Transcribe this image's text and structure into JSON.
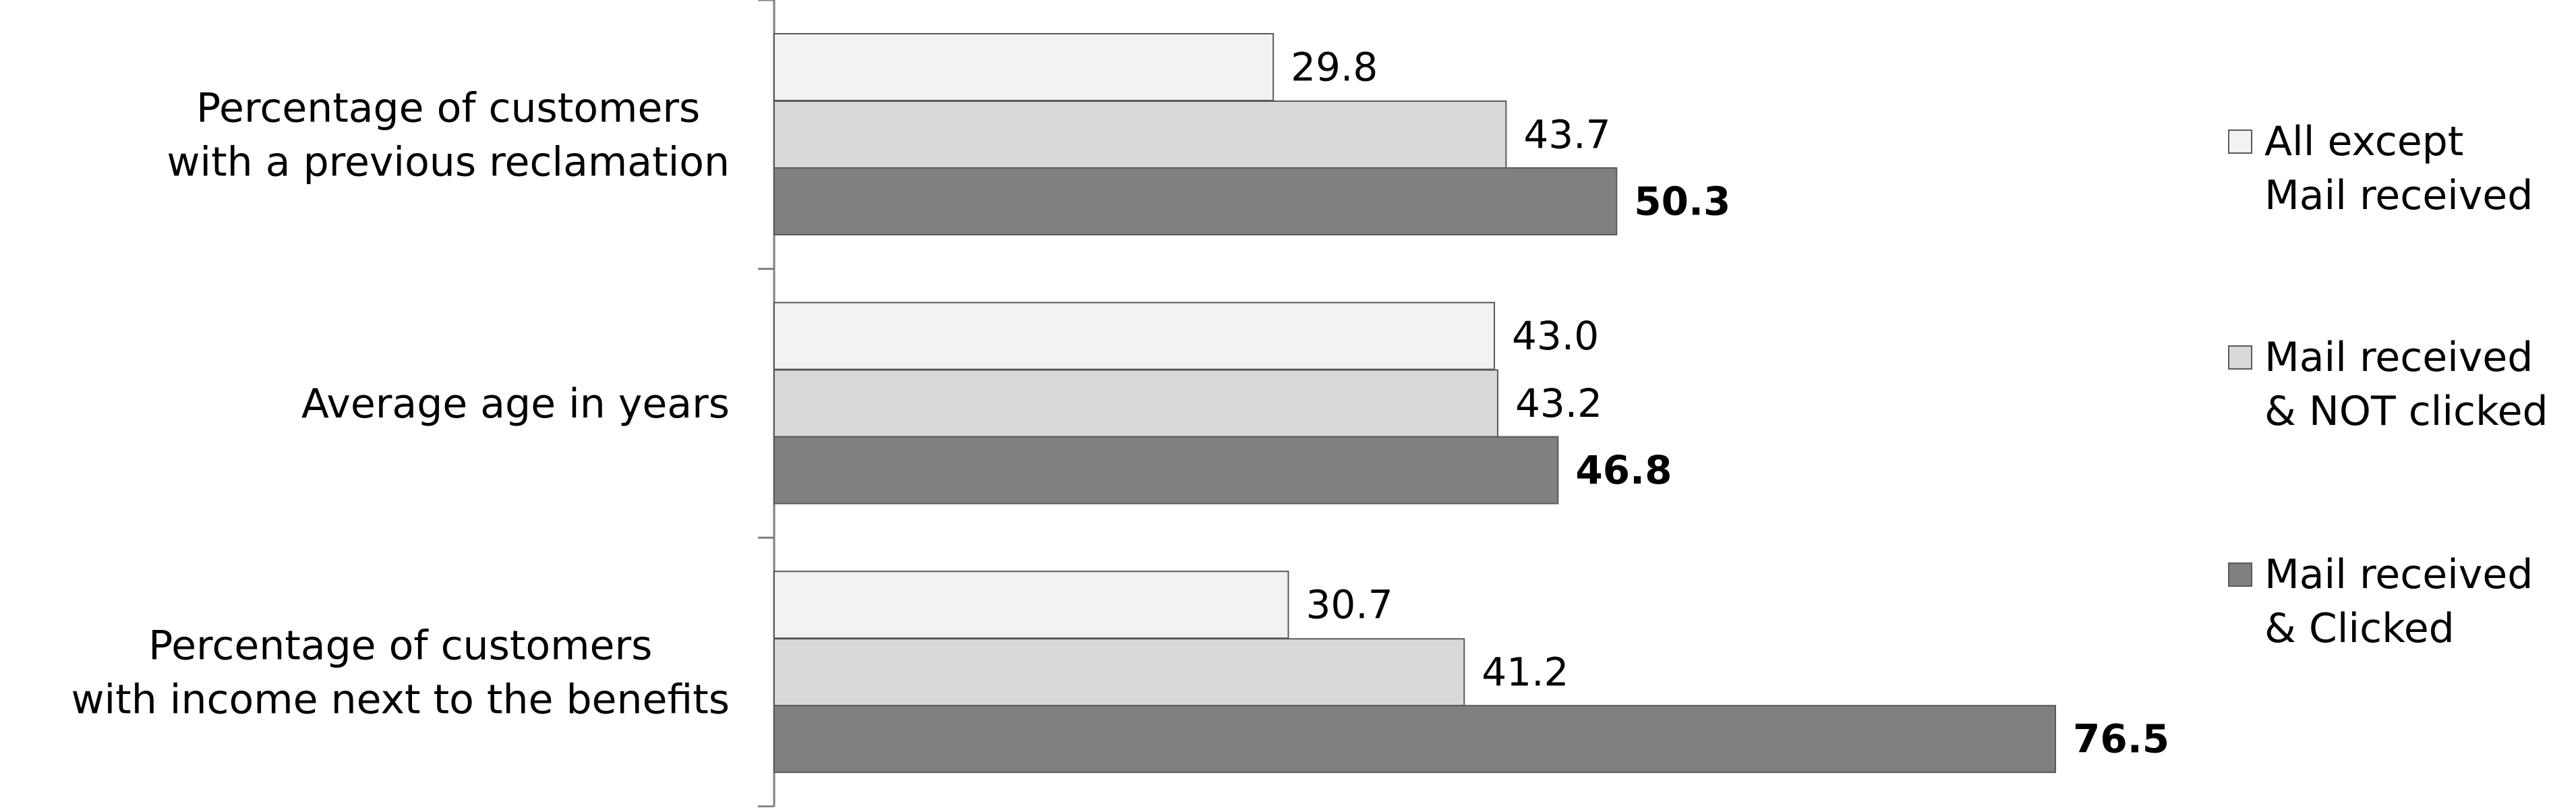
{
  "chart_data": {
    "type": "bar",
    "orientation": "horizontal",
    "categories": [
      [
        "Percentage of customers",
        "with a previous reclamation"
      ],
      [
        "Average age in years"
      ],
      [
        "Percentage of customers",
        "with income next to the benefits"
      ]
    ],
    "series": [
      {
        "name": [
          "All except",
          "Mail received"
        ],
        "color": "#f2f2f2",
        "values": [
          29.8,
          43.0,
          30.7
        ],
        "labels": [
          "29.8",
          "43.0",
          "30.7"
        ],
        "bold_labels": false
      },
      {
        "name": [
          "Mail received",
          "& NOT clicked"
        ],
        "color": "#d9d9d9",
        "values": [
          43.7,
          43.2,
          41.2
        ],
        "labels": [
          "43.7",
          "43.2",
          "41.2"
        ],
        "bold_labels": false
      },
      {
        "name": [
          "Mail received",
          "& Clicked"
        ],
        "color": "#808080",
        "values": [
          50.3,
          46.8,
          76.5
        ],
        "labels": [
          "50.3",
          "46.8",
          "76.5"
        ],
        "bold_labels": true
      }
    ],
    "xlim": [
      0,
      100
    ],
    "grid": false,
    "legend_position": "right"
  }
}
